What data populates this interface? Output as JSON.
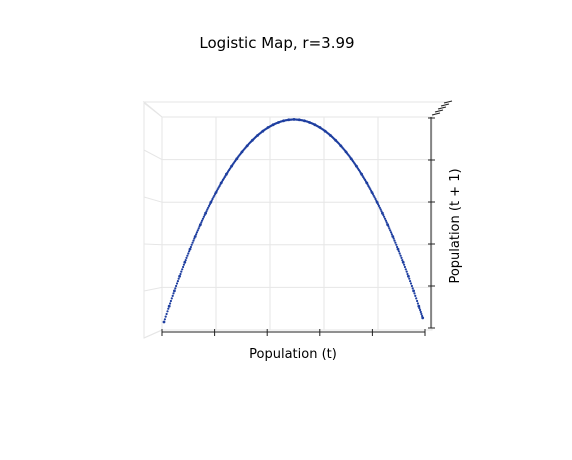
{
  "chart_data": {
    "type": "scatter",
    "projection": "3d",
    "title": "Logistic Map, r=3.99",
    "xlabel": "Population (t)",
    "ylabel": "Population (t + 1)",
    "r": 3.99,
    "xlim": [
      0,
      1
    ],
    "ylim": [
      0,
      1
    ],
    "grid": true,
    "marker_color": "#1f3fa0",
    "tick_labels_shown": false,
    "x": [
      0.0,
      0.02,
      0.04,
      0.06,
      0.08,
      0.1,
      0.12,
      0.14,
      0.16,
      0.18,
      0.2,
      0.22,
      0.24,
      0.26,
      0.28,
      0.3,
      0.32,
      0.34,
      0.36,
      0.38,
      0.4,
      0.42,
      0.44,
      0.46,
      0.48,
      0.5,
      0.52,
      0.54,
      0.56,
      0.58,
      0.6,
      0.62,
      0.64,
      0.66,
      0.68,
      0.7,
      0.72,
      0.74,
      0.76,
      0.78,
      0.8,
      0.82,
      0.84,
      0.86,
      0.88,
      0.9,
      0.92,
      0.94,
      0.96,
      0.98,
      0.995
    ],
    "y": [
      0.0,
      0.078,
      0.153,
      0.225,
      0.294,
      0.359,
      0.421,
      0.48,
      0.536,
      0.589,
      0.638,
      0.685,
      0.728,
      0.768,
      0.804,
      0.838,
      0.868,
      0.895,
      0.919,
      0.94,
      0.958,
      0.972,
      0.983,
      0.991,
      0.996,
      0.998,
      0.996,
      0.991,
      0.983,
      0.972,
      0.958,
      0.94,
      0.919,
      0.895,
      0.868,
      0.838,
      0.804,
      0.768,
      0.728,
      0.685,
      0.638,
      0.589,
      0.536,
      0.48,
      0.421,
      0.359,
      0.294,
      0.225,
      0.153,
      0.078,
      0.02
    ]
  }
}
